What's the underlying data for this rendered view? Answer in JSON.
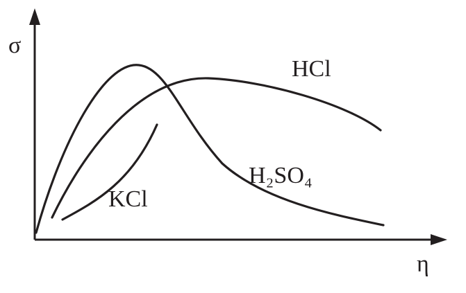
{
  "axes": {
    "y_label": "σ",
    "x_label": "η"
  },
  "curves": [
    {
      "label": "HCl"
    },
    {
      "label": "H₂SO₄"
    },
    {
      "label": "KCl"
    }
  ]
}
